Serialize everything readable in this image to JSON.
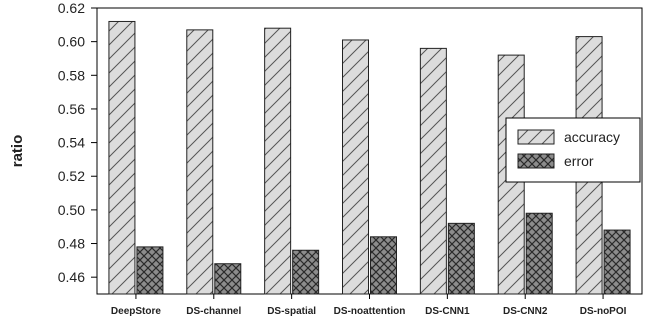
{
  "chart_data": {
    "type": "bar",
    "title": "",
    "xlabel": "",
    "ylabel": "ratio",
    "ylim": [
      0.45,
      0.62
    ],
    "yticks": [
      "0.46",
      "0.48",
      "0.50",
      "0.52",
      "0.54",
      "0.56",
      "0.58",
      "0.60",
      "0.62"
    ],
    "categories": [
      "DeepStore",
      "DS-channel",
      "DS-spatial",
      "DS-noattention",
      "DS-CNN1",
      "DS-CNN2",
      "DS-noPOI"
    ],
    "series": [
      {
        "name": "accuracy",
        "values": [
          0.612,
          0.607,
          0.608,
          0.601,
          0.596,
          0.592,
          0.603
        ],
        "color": "#d9d9d9",
        "pattern": "diagonal-hatch"
      },
      {
        "name": "error",
        "values": [
          0.478,
          0.468,
          0.476,
          0.484,
          0.492,
          0.498,
          0.488
        ],
        "color": "#8a8a8a",
        "pattern": "cross-hatch"
      }
    ],
    "grid": false,
    "legend_position": "right"
  }
}
